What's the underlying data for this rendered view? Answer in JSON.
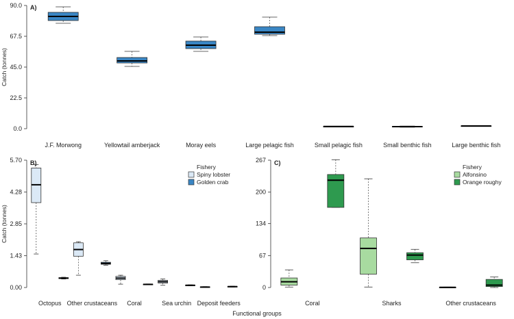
{
  "shared_xlabel": "Functional groups",
  "chart_data": [
    {
      "type": "box",
      "panel_label": "A)",
      "ylabel": "Catch (tonnes)",
      "ylim": [
        0,
        90
      ],
      "yticks": [
        "0.0",
        "22.5",
        "45.0",
        "67.5",
        "90.0"
      ],
      "ytick_values": [
        0,
        22.5,
        45,
        67.5,
        90
      ],
      "categories": [
        "J.F. Morwong",
        "Yellowtail amberjack",
        "Moray eels",
        "Large pelagic fish",
        "Small pelagic fish",
        "Small benthic fish",
        "Large benthic fish"
      ],
      "series": [
        {
          "color": "#3a86c4",
          "boxes": [
            {
              "min": 77,
              "q1": 79,
              "median": 82,
              "q3": 85,
              "max": 89
            },
            {
              "min": 45.5,
              "q1": 48,
              "median": 49.5,
              "q3": 52,
              "max": 56.5
            },
            {
              "min": 56.5,
              "q1": 58.5,
              "median": 61,
              "q3": 64,
              "max": 67
            },
            {
              "min": 68,
              "q1": 69,
              "median": 70.5,
              "q3": 74.5,
              "max": 81.5
            },
            {
              "min": 1.4,
              "q1": 1.5,
              "median": 1.6,
              "q3": 1.7,
              "max": 1.8
            },
            {
              "min": 1.1,
              "q1": 1.3,
              "median": 1.5,
              "q3": 1.7,
              "max": 1.9
            },
            {
              "min": 1.8,
              "q1": 1.9,
              "median": 2.0,
              "q3": 2.1,
              "max": 2.3
            }
          ]
        }
      ]
    },
    {
      "type": "box",
      "panel_label": "B)",
      "ylabel": "Catch (tonnes)",
      "ylim": [
        0,
        5.7
      ],
      "yticks": [
        "0.00",
        "1.43",
        "2.85",
        "4.28",
        "5.70"
      ],
      "ytick_values": [
        0,
        1.425,
        2.85,
        4.275,
        5.7
      ],
      "categories": [
        "Octopus",
        "Other crustaceans",
        "Coral",
        "Sea urchin",
        "Deposit feeders"
      ],
      "legend_title": "Fishery",
      "legend_position": "top-right",
      "series": [
        {
          "name": "Spiny lobster",
          "color": "#dbe9f6",
          "boxes": [
            {
              "min": 1.5,
              "q1": 3.8,
              "median": 4.6,
              "q3": 5.35,
              "max": 5.5
            },
            {
              "min": 0.55,
              "q1": 1.4,
              "median": 1.7,
              "q3": 2.0,
              "max": 2.05
            },
            {
              "min": 0.15,
              "q1": 0.35,
              "median": 0.42,
              "q3": 0.5,
              "max": 0.55
            },
            {
              "min": 0.1,
              "q1": 0.2,
              "median": 0.26,
              "q3": 0.32,
              "max": 0.38
            },
            {
              "min": 0.0,
              "q1": 0.01,
              "median": 0.02,
              "q3": 0.03,
              "max": 0.04
            }
          ]
        },
        {
          "name": "Golden crab",
          "color": "#3a86c4",
          "boxes": [
            {
              "min": 0.38,
              "q1": 0.4,
              "median": 0.42,
              "q3": 0.44,
              "max": 0.46
            },
            {
              "min": 1.0,
              "q1": 1.04,
              "median": 1.08,
              "q3": 1.13,
              "max": 1.2
            },
            {
              "min": 0.12,
              "q1": 0.13,
              "median": 0.14,
              "q3": 0.15,
              "max": 0.16
            },
            {
              "min": 0.08,
              "q1": 0.09,
              "median": 0.1,
              "q3": 0.11,
              "max": 0.12
            },
            {
              "min": 0.02,
              "q1": 0.03,
              "median": 0.04,
              "q3": 0.05,
              "max": 0.06
            }
          ]
        }
      ]
    },
    {
      "type": "box",
      "panel_label": "C)",
      "ylabel": "",
      "ylim": [
        0,
        267
      ],
      "yticks": [
        "0",
        "67",
        "134",
        "200",
        "267"
      ],
      "ytick_values": [
        0,
        67,
        134,
        200,
        267
      ],
      "categories": [
        "Coral",
        "Sharks",
        "Other crustaceans"
      ],
      "legend_title": "Fishery",
      "legend_position": "top-right",
      "series": [
        {
          "name": "Alfonsino",
          "color": "#a8dba0",
          "boxes": [
            {
              "min": 1,
              "q1": 5,
              "median": 12,
              "q3": 20,
              "max": 37
            },
            {
              "min": 1,
              "q1": 28,
              "median": 82,
              "q3": 104,
              "max": 228
            },
            {
              "min": 0,
              "q1": 0.2,
              "median": 0.4,
              "q3": 0.6,
              "max": 1
            }
          ]
        },
        {
          "name": "Orange roughy",
          "color": "#2e9a4f",
          "boxes": [
            {
              "min": 168,
              "q1": 168,
              "median": 225,
              "q3": 237,
              "max": 268
            },
            {
              "min": 52,
              "q1": 58,
              "median": 68,
              "q3": 73,
              "max": 80
            },
            {
              "min": 0,
              "q1": 2,
              "median": 5,
              "q3": 17,
              "max": 22
            }
          ]
        }
      ]
    }
  ]
}
